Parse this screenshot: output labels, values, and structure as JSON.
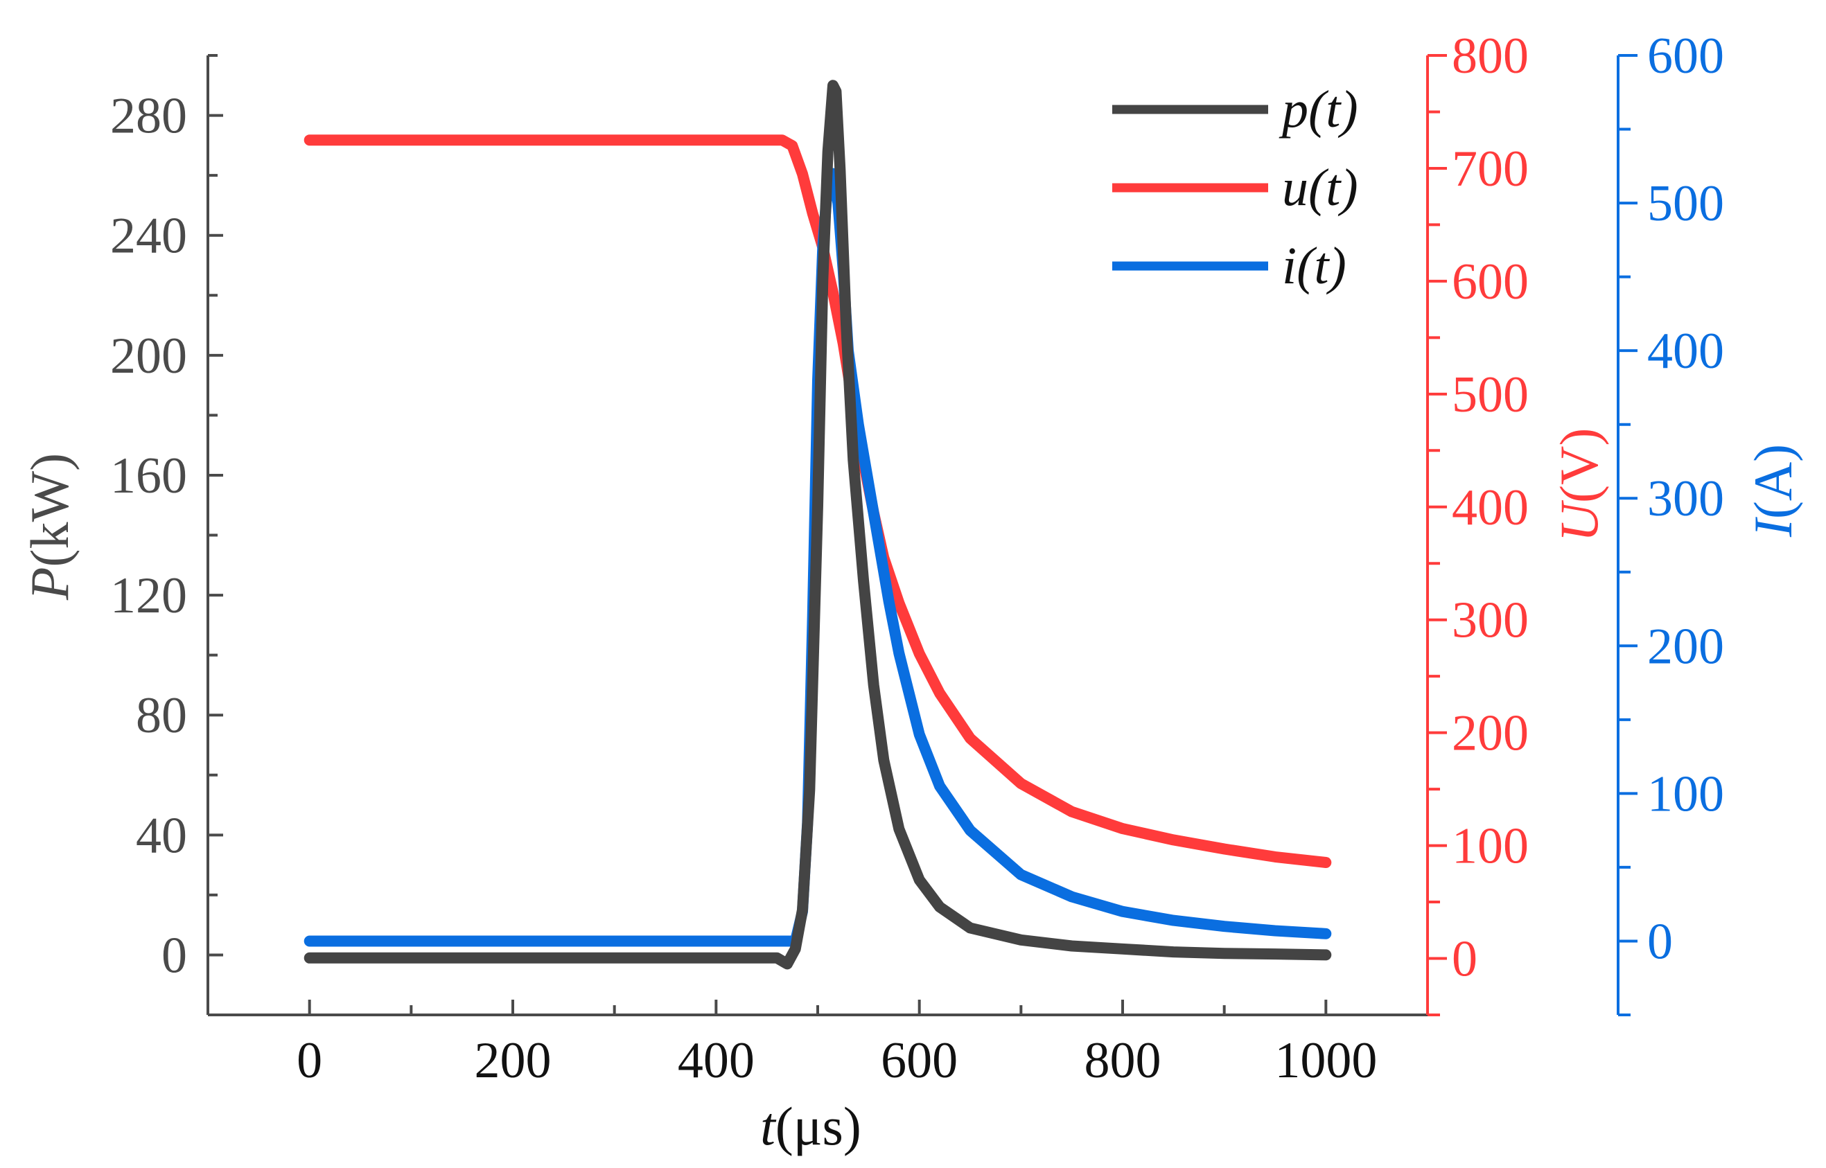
{
  "chart_data": {
    "type": "line",
    "title": "",
    "x": {
      "label_var": "t",
      "label_unit": "(μs)",
      "range": [
        -100,
        1100
      ],
      "ticks": [
        0,
        200,
        400,
        600,
        800,
        1000
      ],
      "tick_labels": [
        "0",
        "200",
        "400",
        "600",
        "800",
        "1000"
      ],
      "minor_step": 100
    },
    "y_left": {
      "label_var": "P",
      "label_unit": "(kW)",
      "range": [
        -20,
        300
      ],
      "ticks": [
        0,
        40,
        80,
        120,
        160,
        200,
        240,
        280
      ],
      "tick_labels": [
        "0",
        "40",
        "80",
        "120",
        "160",
        "200",
        "240",
        "280"
      ],
      "minor_step": 20,
      "color": "#4a4a4a"
    },
    "y_right_1": {
      "label_var": "U",
      "label_unit": "(V)",
      "range": [
        -50,
        800
      ],
      "ticks": [
        0,
        100,
        200,
        300,
        400,
        500,
        600,
        700,
        800
      ],
      "tick_labels": [
        "0",
        "100",
        "200",
        "300",
        "400",
        "500",
        "600",
        "700",
        "800"
      ],
      "minor_step": 50,
      "color": "#ff3b3b"
    },
    "y_right_2": {
      "label_var": "I",
      "label_unit": "(A)",
      "range": [
        -50,
        600
      ],
      "ticks": [
        0,
        100,
        200,
        300,
        400,
        500,
        600
      ],
      "tick_labels": [
        "0",
        "100",
        "200",
        "300",
        "400",
        "500",
        "600"
      ],
      "minor_step": 50,
      "color": "#0a6ee0"
    },
    "legend": {
      "position": "top-right",
      "entries": [
        "p(t)",
        "u(t)",
        "i(t)"
      ]
    },
    "series": [
      {
        "name": "p(t)",
        "axis": "left",
        "color": "#444444",
        "x": [
          0,
          100,
          200,
          300,
          400,
          460,
          470,
          478,
          485,
          492,
          500,
          505,
          510,
          515,
          518,
          522,
          528,
          535,
          545,
          555,
          565,
          580,
          600,
          620,
          650,
          700,
          750,
          800,
          850,
          900,
          950,
          1000
        ],
        "y": [
          -1,
          -1,
          -1,
          -1,
          -1,
          -1,
          -3,
          2,
          15,
          55,
          150,
          225,
          268,
          290,
          288,
          262,
          210,
          165,
          125,
          90,
          65,
          42,
          25,
          16,
          9,
          5,
          3,
          2,
          1,
          0.5,
          0.3,
          0
        ]
      },
      {
        "name": "u(t)",
        "axis": "right_1",
        "color": "#ff3b3b",
        "x": [
          0,
          100,
          200,
          300,
          400,
          465,
          475,
          485,
          495,
          505,
          515,
          525,
          535,
          545,
          555,
          565,
          580,
          600,
          620,
          650,
          700,
          750,
          800,
          850,
          900,
          950,
          1000
        ],
        "y": [
          725,
          725,
          725,
          725,
          725,
          725,
          720,
          695,
          660,
          630,
          590,
          545,
          490,
          440,
          395,
          355,
          315,
          270,
          235,
          195,
          155,
          130,
          115,
          105,
          97,
          90,
          85
        ]
      },
      {
        "name": "i(t)",
        "axis": "right_2",
        "color": "#0a6ee0",
        "x": [
          0,
          100,
          200,
          300,
          400,
          470,
          478,
          485,
          490,
          495,
          500,
          505,
          510,
          515,
          520,
          525,
          530,
          540,
          550,
          560,
          570,
          580,
          600,
          620,
          650,
          700,
          750,
          800,
          850,
          900,
          950,
          1000
        ],
        "y": [
          0,
          0,
          0,
          0,
          0,
          0,
          0,
          20,
          80,
          220,
          380,
          470,
          515,
          520,
          500,
          455,
          400,
          350,
          310,
          270,
          230,
          195,
          140,
          105,
          75,
          45,
          30,
          20,
          14,
          10,
          7,
          5
        ]
      }
    ]
  }
}
